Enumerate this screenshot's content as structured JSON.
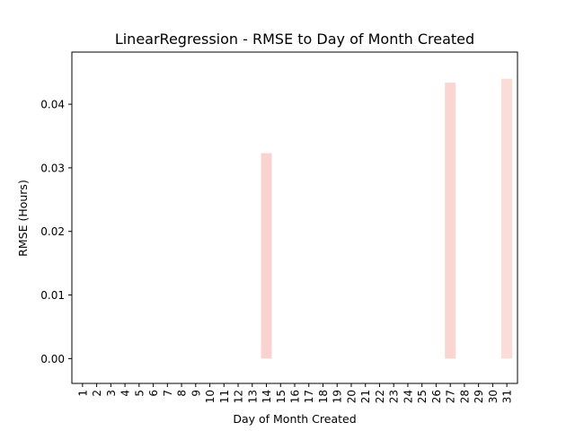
{
  "chart_data": {
    "type": "bar",
    "title": "LinearRegression - RMSE to Day of Month Created",
    "xlabel": "Day of Month Created",
    "ylabel": "RMSE (Hours)",
    "categories": [
      "1",
      "2",
      "3",
      "4",
      "5",
      "6",
      "7",
      "8",
      "9",
      "10",
      "11",
      "12",
      "13",
      "14",
      "15",
      "16",
      "17",
      "18",
      "19",
      "20",
      "21",
      "22",
      "23",
      "24",
      "25",
      "26",
      "27",
      "28",
      "29",
      "30",
      "31"
    ],
    "values": [
      0,
      0,
      0,
      0,
      0,
      0,
      0,
      0,
      0,
      0,
      0,
      0,
      0,
      0.0323,
      0,
      0,
      0,
      0,
      0,
      0,
      0,
      0,
      0,
      0,
      0,
      0,
      0.0434,
      0,
      0,
      0,
      0.044
    ],
    "ylim": [
      -0.0039,
      0.0482
    ],
    "yticks": [
      0.0,
      0.01,
      0.02,
      0.03,
      0.04
    ],
    "ytick_labels": [
      "0.00",
      "0.01",
      "0.02",
      "0.03",
      "0.04"
    ],
    "bar_colors": {
      "14": "#f9d3cf",
      "27": "#f9d6d2",
      "31": "#fbdcd8"
    },
    "grid": false,
    "legend": "none"
  }
}
